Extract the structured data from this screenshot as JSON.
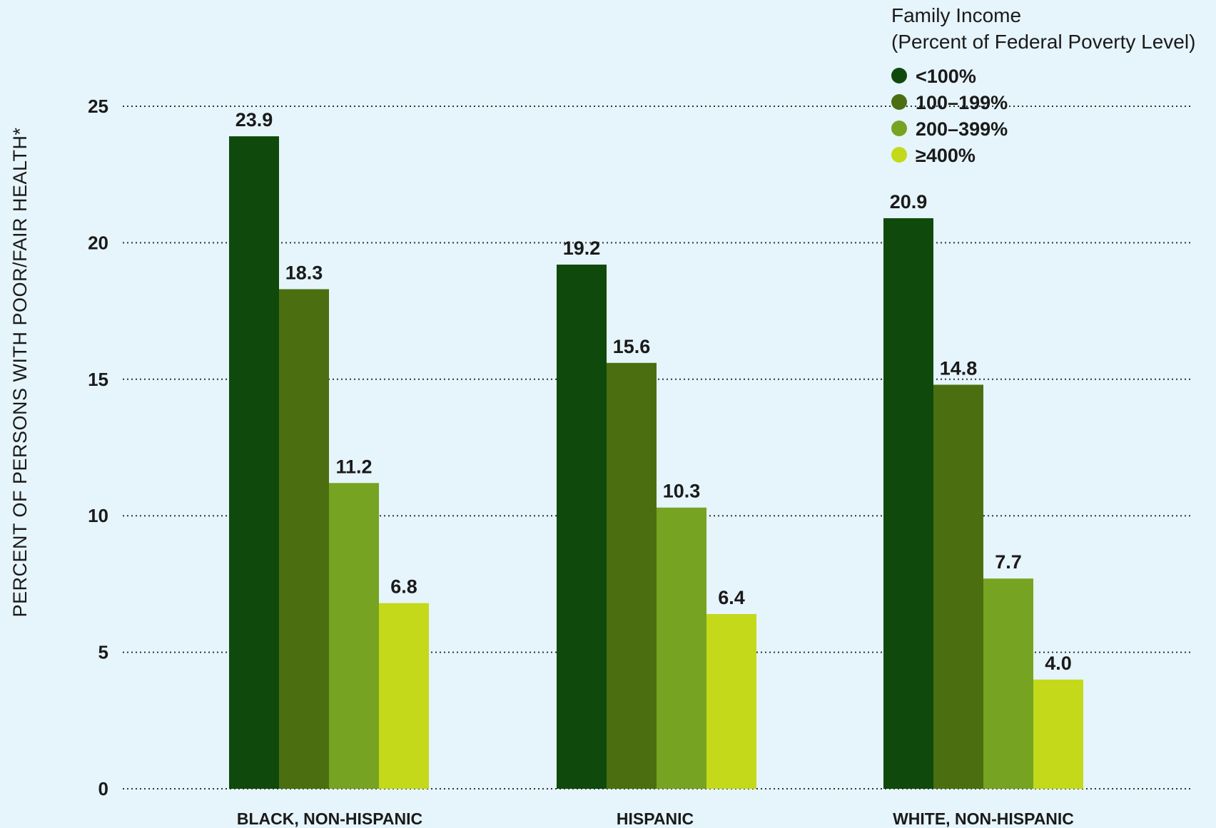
{
  "chart_data": {
    "type": "bar",
    "title": "",
    "ylabel": "PERCENT OF PERSONS WITH POOR/FAIR HEALTH*",
    "xlabel": "",
    "ylim": [
      0,
      25
    ],
    "yticks": [
      0,
      5,
      10,
      15,
      20,
      25
    ],
    "grid": true,
    "legend_position": "top-right",
    "legend_title_lines": [
      "Family Income",
      "(Percent of Federal Poverty Level)"
    ],
    "categories": [
      "BLACK, NON-HISPANIC",
      "HISPANIC",
      "WHITE, NON-HISPANIC"
    ],
    "series": [
      {
        "name": "<100%",
        "color": "#0f4a0c",
        "values": [
          23.9,
          19.2,
          20.9
        ]
      },
      {
        "name": "100–199%",
        "color": "#4b6f10",
        "values": [
          18.3,
          15.6,
          14.8
        ]
      },
      {
        "name": "200–399%",
        "color": "#76a321",
        "values": [
          11.2,
          10.3,
          7.7
        ]
      },
      {
        "name": "≥400%",
        "color": "#c3d91a",
        "values": [
          6.8,
          6.4,
          4.0
        ]
      }
    ],
    "value_labels": [
      [
        "23.9",
        "19.2",
        "20.9"
      ],
      [
        "18.3",
        "15.6",
        "14.8"
      ],
      [
        "11.2",
        "10.3",
        "7.7"
      ],
      [
        "6.8",
        "6.4",
        "4.0"
      ]
    ],
    "background_color": "#e6f4fb"
  }
}
